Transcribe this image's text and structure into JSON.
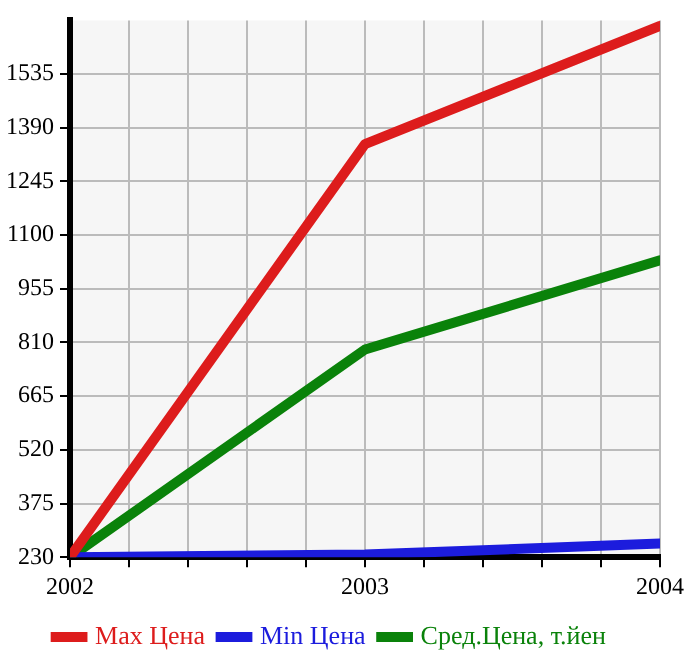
{
  "chart_data": {
    "type": "line",
    "x": [
      2002,
      2003,
      2004
    ],
    "series": [
      {
        "name": "Max Цена",
        "color": "#dd1c1c",
        "values": [
          230,
          1346,
          1665
        ]
      },
      {
        "name": "Min Цена",
        "color": "#1c1cdd",
        "values": [
          230,
          237,
          267
        ]
      },
      {
        "name": "Сред.Цена, т.йен",
        "color": "#0a820a",
        "values": [
          230,
          791,
          1032
        ]
      }
    ],
    "xlim": [
      2002,
      2004
    ],
    "xticks": [
      2002,
      {
        "value": 2002.2,
        "label": null
      },
      {
        "value": 2002.4,
        "label": null
      },
      {
        "value": 2002.6,
        "label": null
      },
      {
        "value": 2002.8,
        "label": null
      },
      2003,
      {
        "value": 2003.2,
        "label": null
      },
      {
        "value": 2003.4,
        "label": null
      },
      {
        "value": 2003.6,
        "label": null
      },
      {
        "value": 2003.8,
        "label": null
      },
      2004
    ],
    "ylim": [
      230,
      1680
    ],
    "yticks": [
      230,
      375,
      520,
      665,
      810,
      955,
      1100,
      1245,
      1390,
      1535
    ],
    "grid": true,
    "legend": "bottom",
    "marker": "none",
    "line_style": "solid"
  }
}
